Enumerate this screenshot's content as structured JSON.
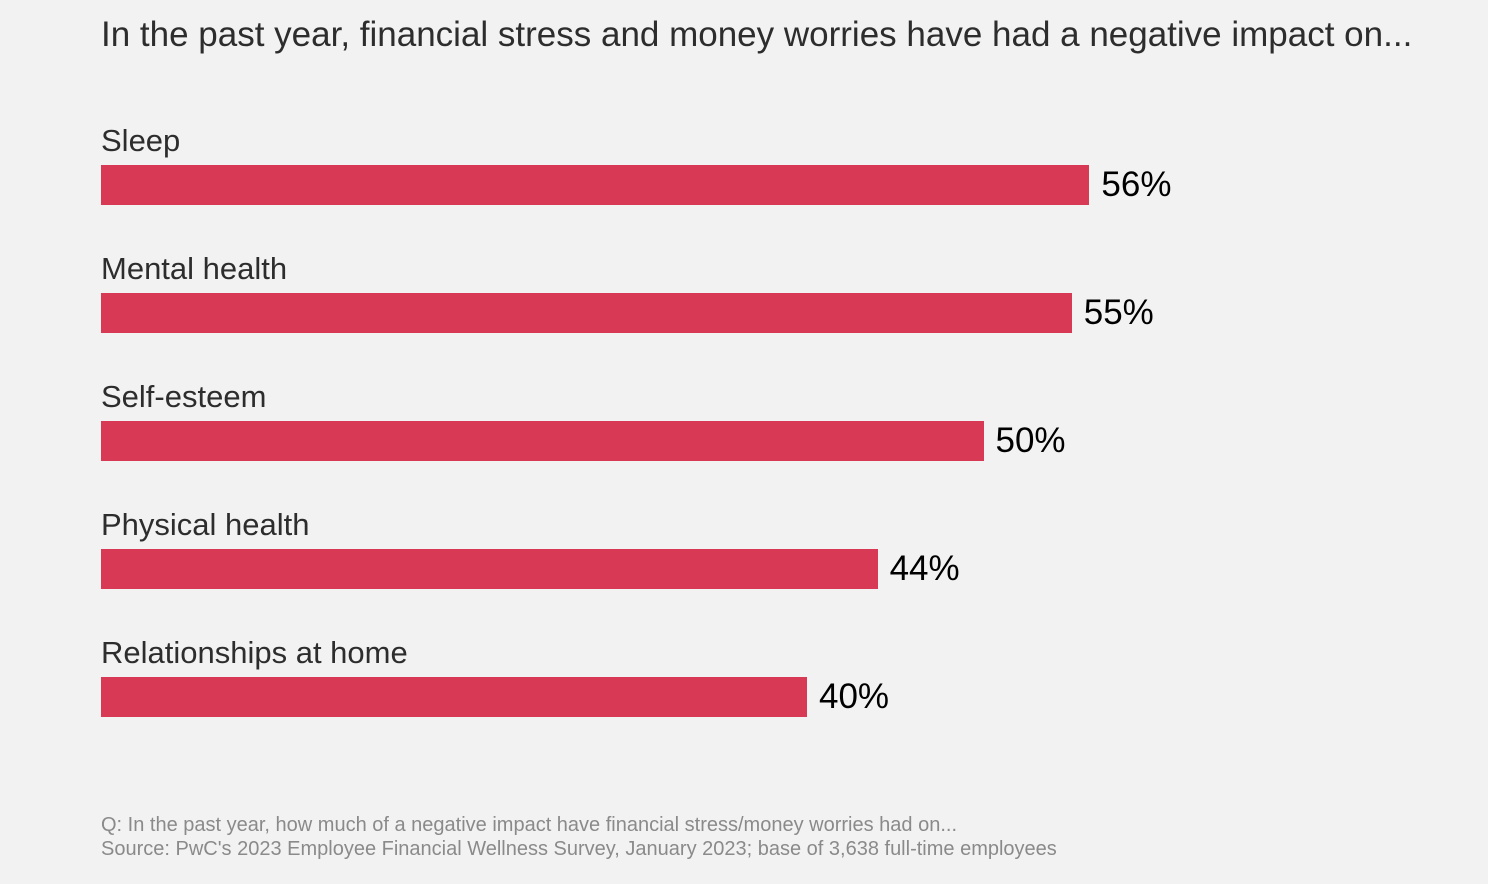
{
  "title": "In the past year, financial stress and money worries have had a negative impact on...",
  "bar_color": "#d83a56",
  "chart_data": {
    "type": "bar",
    "orientation": "horizontal",
    "categories": [
      "Sleep",
      "Mental health",
      "Self-esteem",
      "Physical health",
      "Relationships at home"
    ],
    "values": [
      56,
      55,
      50,
      44,
      40
    ],
    "value_labels": [
      "56%",
      "55%",
      "50%",
      "44%",
      "40%"
    ],
    "unit": "%",
    "title": "In the past year, financial stress and money worries have had a negative impact on...",
    "xlabel": "",
    "ylabel": "",
    "xlim": [
      0,
      100
    ],
    "grid": false,
    "legend": "none"
  },
  "footnote": {
    "question": "Q: In the past year, how much of a negative impact have financial stress/money worries had on...",
    "source": "Source: PwC's 2023 Employee Financial Wellness Survey, January 2023; base of 3,638 full-time employees"
  }
}
